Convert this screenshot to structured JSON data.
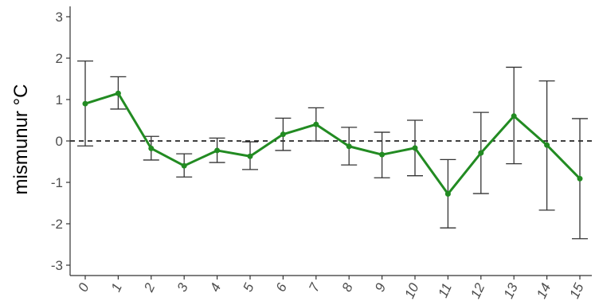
{
  "chart_data": {
    "type": "line",
    "title": "",
    "xlabel": "",
    "ylabel": "mismunur °C",
    "categories": [
      "0",
      "1",
      "2",
      "3",
      "4",
      "5",
      "6",
      "7",
      "8",
      "9",
      "10",
      "11",
      "12",
      "13",
      "14",
      "15"
    ],
    "series": [
      {
        "values": [
          0.9,
          1.15,
          -0.18,
          -0.6,
          -0.23,
          -0.37,
          0.16,
          0.4,
          -0.13,
          -0.33,
          -0.17,
          -1.28,
          -0.29,
          0.6,
          -0.1,
          -0.91
        ],
        "error_low": [
          -0.12,
          0.77,
          -0.46,
          -0.87,
          -0.52,
          -0.69,
          -0.23,
          0.0,
          -0.58,
          -0.89,
          -0.84,
          -2.1,
          -1.27,
          -0.55,
          -1.67,
          -2.36
        ],
        "error_high": [
          1.93,
          1.55,
          0.11,
          -0.31,
          0.07,
          -0.02,
          0.55,
          0.8,
          0.33,
          0.21,
          0.5,
          -0.45,
          0.69,
          1.78,
          1.45,
          0.54
        ]
      }
    ],
    "ylim": [
      -3.25,
      3.25
    ],
    "yticks": [
      "3",
      "2",
      "1",
      "0",
      "-1",
      "-2",
      "-3"
    ],
    "reference_line": 0,
    "colors": {
      "line": "#228b22",
      "error_bar": "#333333",
      "reference": "#000000",
      "axis": "#333333"
    },
    "grid": false
  }
}
